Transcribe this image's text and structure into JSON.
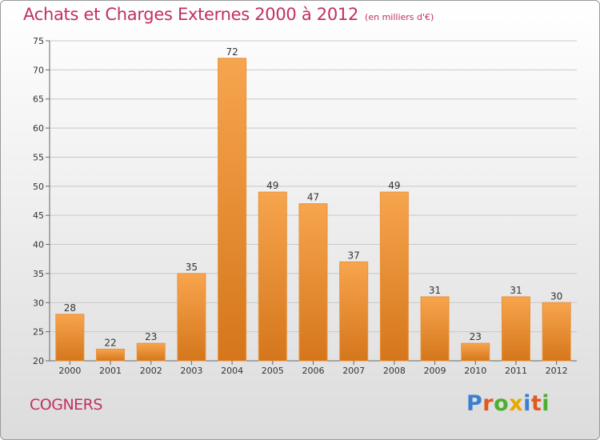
{
  "header": {
    "title": "Achats et Charges Externes 2000 à 2012",
    "subtitle": "(en milliers d'€)"
  },
  "footer": {
    "commune": "COGNERS"
  },
  "logo": {
    "text": "Proxiti",
    "letters": [
      {
        "char": "P",
        "color": "#3a7fd0"
      },
      {
        "char": "r",
        "color": "#e05a1c"
      },
      {
        "char": "o",
        "color": "#4caf32"
      },
      {
        "char": "x",
        "color": "#e8a800"
      },
      {
        "char": "i",
        "color": "#3a7fd0"
      },
      {
        "char": "t",
        "color": "#e05a1c"
      },
      {
        "char": "i",
        "color": "#4caf32"
      }
    ]
  },
  "colors": {
    "title": "#c03060",
    "bar_light": "#f7a54e",
    "bar_dark": "#d5761b",
    "grid": "#c8c8c8",
    "axis_text": "#333333"
  },
  "chart_data": {
    "type": "bar",
    "title": "Achats et Charges Externes 2000 à 2012",
    "subtitle": "(en milliers d'€)",
    "categories": [
      "2000",
      "2001",
      "2002",
      "2003",
      "2004",
      "2005",
      "2006",
      "2007",
      "2008",
      "2009",
      "2010",
      "2011",
      "2012"
    ],
    "values": [
      28,
      22,
      23,
      35,
      72,
      49,
      47,
      37,
      49,
      31,
      23,
      31,
      30
    ],
    "data_labels": [
      "28",
      "22",
      "23",
      "35",
      "72",
      "49",
      "47",
      "37",
      "49",
      "31",
      "23",
      "31",
      "30"
    ],
    "ylim": [
      20,
      75
    ],
    "yticks": [
      20,
      25,
      30,
      35,
      40,
      45,
      50,
      55,
      60,
      65,
      70,
      75
    ],
    "ytick_labels": [
      "20",
      "25",
      "30",
      "35",
      "40",
      "45",
      "50",
      "55",
      "60",
      "65",
      "70",
      "75"
    ],
    "grid": true,
    "xlabel": "",
    "ylabel": ""
  }
}
